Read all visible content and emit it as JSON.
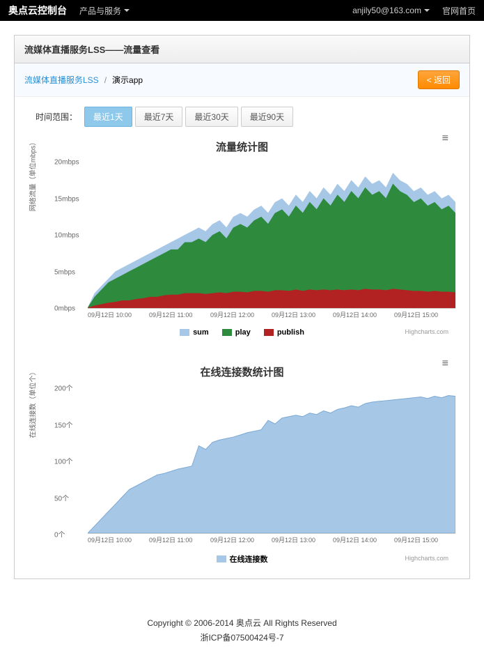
{
  "topbar": {
    "logo": "奥点云控制台",
    "nav_products": "产品与服务",
    "user": "anjily50@163.com",
    "home": "官网首页"
  },
  "panel": {
    "title": "流媒体直播服务LSS——流量查看"
  },
  "breadcrumb": {
    "link": "流媒体直播服务LSS",
    "current": "演示app",
    "back": "< 返回"
  },
  "filter": {
    "label": "时间范围：",
    "tabs": [
      "最近1天",
      "最近7天",
      "最近30天",
      "最近90天"
    ],
    "active_index": 0
  },
  "chart1": {
    "title": "流量统计图",
    "type": "area",
    "y_label": "网络流量（单位mbps）",
    "y_ticks": [
      "0mbps",
      "5mbps",
      "10mbps",
      "15mbps",
      "20mbps"
    ],
    "ylim": [
      0,
      20
    ],
    "x_ticks": [
      "09月12日 10:00",
      "09月12日 11:00",
      "09月12日 12:00",
      "09月12日 13:00",
      "09月12日 14:00",
      "09月12日 15:00"
    ],
    "series": [
      {
        "name": "sum",
        "color": "#a7c7e7"
      },
      {
        "name": "play",
        "color": "#2e8b3d"
      },
      {
        "name": "publish",
        "color": "#b22222"
      }
    ],
    "sum_points": [
      0,
      2,
      3,
      4,
      5,
      5.5,
      6,
      6.5,
      7,
      7.5,
      8,
      8.5,
      9,
      9.5,
      10,
      10.5,
      11,
      10.5,
      11.5,
      12,
      11,
      12.5,
      13,
      12.5,
      13.5,
      14,
      13,
      14.5,
      15,
      14,
      15.5,
      14.5,
      16,
      15,
      16.5,
      15.5,
      17,
      16,
      17.5,
      16.5,
      18,
      17,
      17.5,
      16.5,
      18.5,
      17.5,
      17,
      16,
      16.5,
      15.5,
      16,
      15,
      15.5,
      14.5
    ],
    "play_points": [
      0,
      1.5,
      2.5,
      3.5,
      4,
      4.5,
      5,
      5.5,
      6,
      6.5,
      7,
      7.5,
      8,
      8,
      9,
      9,
      9.5,
      9,
      10,
      10.5,
      9.5,
      11,
      11.5,
      11,
      12,
      12.5,
      11.5,
      13,
      13.5,
      12.5,
      14,
      13,
      14.5,
      13.5,
      15,
      14,
      15.5,
      14.5,
      16,
      15,
      16.5,
      15.5,
      16,
      15,
      17,
      16,
      15.5,
      14.5,
      15,
      14,
      14.5,
      13.5,
      14,
      13
    ],
    "publish_points": [
      0,
      0.3,
      0.5,
      0.7,
      0.8,
      1,
      1,
      1.2,
      1.3,
      1.5,
      1.5,
      1.7,
      1.8,
      1.8,
      2,
      2,
      2,
      1.9,
      2,
      2.1,
      2,
      2.2,
      2.2,
      2.1,
      2.3,
      2.3,
      2.2,
      2.4,
      2.4,
      2.3,
      2.5,
      2.3,
      2.5,
      2.4,
      2.5,
      2.4,
      2.5,
      2.4,
      2.5,
      2.4,
      2.6,
      2.5,
      2.5,
      2.4,
      2.6,
      2.5,
      2.4,
      2.3,
      2.3,
      2.2,
      2.3,
      2.2,
      2.2,
      2.1
    ],
    "credit": "Highcharts.com"
  },
  "chart2": {
    "title": "在线连接数统计图",
    "type": "area",
    "y_label": "在线连接数（单位个）",
    "y_ticks": [
      "0个",
      "50个",
      "100个",
      "150个",
      "200个"
    ],
    "ylim": [
      0,
      200
    ],
    "x_ticks": [
      "09月12日 10:00",
      "09月12日 11:00",
      "09月12日 12:00",
      "09月12日 13:00",
      "09月12日 14:00",
      "09月12日 15:00"
    ],
    "color": "#a7c7e7",
    "legend_label": "在线连接数",
    "points": [
      0,
      10,
      20,
      30,
      40,
      50,
      60,
      65,
      70,
      75,
      80,
      82,
      85,
      88,
      90,
      92,
      120,
      115,
      125,
      128,
      130,
      132,
      135,
      138,
      140,
      142,
      155,
      150,
      158,
      160,
      162,
      160,
      165,
      163,
      168,
      165,
      170,
      172,
      175,
      173,
      178,
      180,
      181,
      182,
      183,
      184,
      185,
      186,
      187,
      185,
      188,
      186,
      189,
      188
    ],
    "credit": "Highcharts.com"
  },
  "footer": {
    "line1": "Copyright © 2006-2014 奥点云 All Rights Reserved",
    "line2": "浙ICP备07500424号-7"
  }
}
